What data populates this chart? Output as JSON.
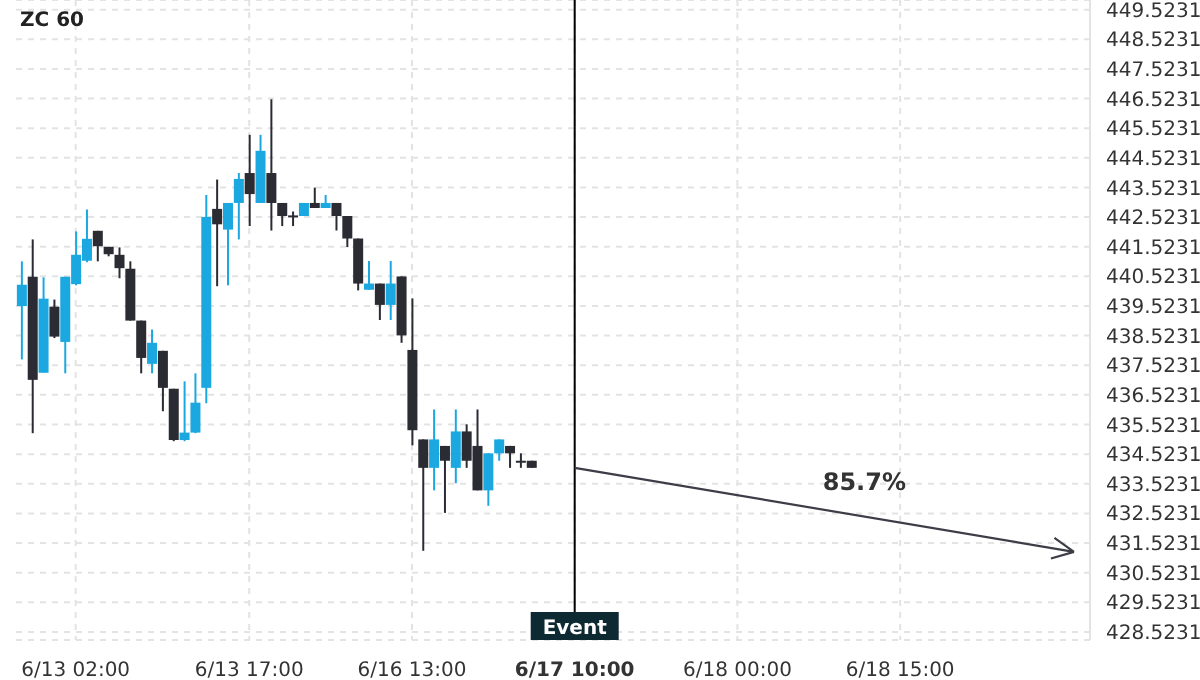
{
  "chart_data": {
    "type": "candlestick",
    "title": "ZC 60",
    "categories": [
      null,
      null,
      null,
      null,
      null,
      "6/13 02:00",
      null,
      null,
      null,
      null,
      null,
      null,
      null,
      null,
      null,
      null,
      null,
      null,
      null,
      null,
      null,
      "6/13 17:00",
      null,
      null,
      null,
      null,
      null,
      null,
      null,
      null,
      null,
      null,
      null,
      null,
      null,
      null,
      "6/16 13:00",
      null,
      null,
      null,
      null,
      null,
      null,
      null,
      null,
      null,
      null,
      null,
      null,
      null,
      null,
      "6/17 10:00",
      null,
      null,
      null,
      null,
      null,
      null,
      null,
      null,
      null,
      null,
      null,
      null,
      null,
      null,
      "6/18 00:00",
      null,
      null,
      null,
      null,
      null,
      null,
      null,
      null,
      null,
      null,
      null,
      null,
      null,
      null,
      "6/18 15:00",
      null,
      null,
      null,
      null,
      null,
      null,
      null,
      null,
      null,
      null,
      null,
      null,
      null,
      null,
      null,
      null,
      null
    ],
    "ohlc": [
      [
        439.52,
        441.03,
        437.72,
        440.24
      ],
      [
        440.51,
        441.77,
        435.23,
        437.03
      ],
      [
        437.27,
        440.49,
        437.27,
        439.77
      ],
      [
        439.5,
        439.74,
        438.44,
        438.49
      ],
      [
        438.31,
        440.51,
        437.25,
        440.51
      ],
      [
        440.26,
        442.04,
        440.22,
        441.25
      ],
      [
        441.05,
        442.78,
        441.0,
        441.79
      ],
      [
        442.06,
        442.06,
        441.03,
        441.54
      ],
      [
        441.52,
        441.52,
        441.2,
        441.27
      ],
      [
        441.25,
        441.5,
        440.46,
        440.8
      ],
      [
        440.78,
        441.03,
        439.03,
        439.03
      ],
      [
        439.03,
        439.03,
        437.25,
        437.77
      ],
      [
        437.57,
        438.73,
        437.25,
        438.28
      ],
      [
        438.01,
        438.01,
        435.97,
        436.76
      ],
      [
        436.73,
        436.73,
        434.96,
        435.0
      ],
      [
        435.0,
        436.98,
        434.96,
        435.25
      ],
      [
        435.25,
        437.25,
        435.23,
        436.26
      ],
      [
        436.76,
        443.27,
        436.24,
        442.53
      ],
      [
        442.8,
        443.79,
        440.19,
        442.28
      ],
      [
        442.1,
        443.0,
        440.22,
        443.0
      ],
      [
        443.0,
        444.01,
        441.77,
        443.81
      ],
      [
        444.01,
        445.3,
        442.22,
        443.3
      ],
      [
        443.0,
        445.3,
        443.0,
        444.76
      ],
      [
        444.01,
        446.5,
        442.07,
        443.0
      ],
      [
        443.0,
        443.0,
        442.22,
        442.56
      ],
      [
        442.58,
        442.71,
        442.22,
        442.58
      ],
      [
        442.56,
        443.0,
        442.56,
        443.0
      ],
      [
        443.0,
        443.52,
        442.83,
        442.83
      ],
      [
        442.83,
        443.27,
        442.83,
        443.0
      ],
      [
        443.0,
        443.0,
        442.07,
        442.56
      ],
      [
        442.56,
        442.56,
        441.51,
        441.8
      ],
      [
        441.8,
        441.8,
        440.05,
        440.28
      ],
      [
        440.07,
        441.04,
        440.07,
        440.28
      ],
      [
        440.28,
        440.28,
        439.05,
        439.56
      ],
      [
        439.56,
        441.04,
        439.05,
        440.28
      ],
      [
        440.52,
        440.52,
        438.28,
        438.53
      ],
      [
        438.04,
        439.78,
        434.82,
        435.33
      ],
      [
        435.02,
        435.02,
        431.26,
        434.06
      ],
      [
        434.06,
        436.03,
        433.3,
        435.02
      ],
      [
        434.8,
        434.8,
        432.54,
        434.3
      ],
      [
        434.06,
        436.03,
        433.54,
        435.29
      ],
      [
        435.29,
        435.53,
        434.06,
        434.3
      ],
      [
        434.8,
        436.03,
        433.3,
        433.3
      ],
      [
        433.3,
        434.55,
        432.78,
        434.55
      ],
      [
        434.55,
        435.02,
        434.3,
        435.02
      ],
      [
        434.8,
        434.8,
        434.06,
        434.55
      ],
      [
        434.3,
        434.55,
        434.06,
        434.3
      ],
      [
        434.3,
        434.3,
        434.06,
        434.06
      ],
      null,
      null,
      null,
      null,
      null,
      null,
      null,
      null,
      null,
      null,
      null,
      null,
      null,
      null,
      null,
      null,
      null,
      null,
      null,
      null,
      null,
      null,
      null,
      null,
      null,
      null,
      null,
      null,
      null,
      null,
      null,
      null,
      null,
      null,
      null,
      null,
      null,
      null,
      null,
      null,
      null,
      null,
      null,
      null,
      null,
      null,
      null,
      null,
      null,
      null,
      null
    ],
    "colors": [
      "#1ba8e0",
      "#2a2b33",
      "#1ba8e0",
      "#2a2b33",
      "#1ba8e0",
      "#1ba8e0",
      "#1ba8e0",
      "#2a2b33",
      "#2a2b33",
      "#2a2b33",
      "#2a2b33",
      "#2a2b33",
      "#1ba8e0",
      "#2a2b33",
      "#2a2b33",
      "#1ba8e0",
      "#1ba8e0",
      "#1ba8e0",
      "#2a2b33",
      "#1ba8e0",
      "#1ba8e0",
      "#2a2b33",
      "#1ba8e0",
      "#2a2b33",
      "#2a2b33",
      "#2a2b33",
      "#1ba8e0",
      "#2a2b33",
      "#1ba8e0",
      "#2a2b33",
      "#2a2b33",
      "#2a2b33",
      "#1ba8e0",
      "#2a2b33",
      "#1ba8e0",
      "#2a2b33",
      "#2a2b33",
      "#2a2b33",
      "#1ba8e0",
      "#2a2b33",
      "#1ba8e0",
      "#2a2b33",
      "#2a2b33",
      "#1ba8e0",
      "#1ba8e0",
      "#2a2b33",
      "#2a2b33",
      "#2a2b33",
      null,
      null,
      null,
      null,
      null,
      null,
      null,
      null,
      null,
      null,
      null,
      null,
      null,
      null,
      null,
      null,
      null,
      null,
      null,
      null,
      null,
      null,
      null,
      null,
      null,
      null,
      null,
      null,
      null,
      null,
      null,
      null,
      null,
      null,
      null,
      null,
      null,
      null,
      null,
      null,
      null,
      null,
      null,
      null,
      null,
      null,
      null,
      null,
      null,
      null,
      null
    ],
    "ylim": [
      428.25,
      449.85
    ],
    "yticks": [
      428.5231,
      429.5231,
      430.5231,
      431.5231,
      432.5231,
      433.5231,
      434.5231,
      435.5231,
      436.5231,
      437.5231,
      438.5231,
      439.5231,
      440.5231,
      441.5231,
      442.5231,
      443.5231,
      444.5231,
      445.5231,
      446.5231,
      447.5231,
      448.5231,
      449.5231
    ],
    "grid": true,
    "ref_lines": [
      {
        "axis": "x",
        "value": "6/17 10:00",
        "label": "Event",
        "color": "#000000"
      }
    ],
    "annotations": [
      "85.7%"
    ]
  }
}
